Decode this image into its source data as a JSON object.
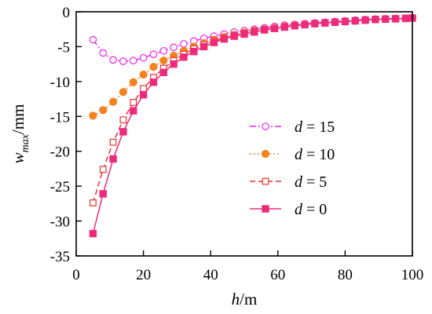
{
  "chart_data": {
    "type": "line",
    "xlabel": {
      "var": "h",
      "unit": "/m"
    },
    "ylabel": {
      "var": "w",
      "sub": "max",
      "unit": "/mm"
    },
    "xlim": [
      0,
      100
    ],
    "ylim": [
      -35,
      0
    ],
    "xticks": [
      0,
      20,
      40,
      60,
      80,
      100
    ],
    "yticks": [
      0,
      -5,
      -10,
      -15,
      -20,
      -25,
      -30,
      -35
    ],
    "grid": false,
    "legend_position": "right",
    "x": [
      5,
      8,
      11,
      14,
      17,
      20,
      23,
      26,
      29,
      32,
      35,
      38,
      41,
      44,
      47,
      50,
      53,
      56,
      59,
      62,
      65,
      68,
      71,
      74,
      77,
      80,
      83,
      86,
      89,
      92,
      95,
      98,
      100
    ],
    "series": [
      {
        "name": "d = 15",
        "label_var": "d",
        "label_value": "= 15",
        "color": "#ee22ee",
        "marker": "circle-open",
        "line": "dashdot",
        "values": [
          -4.0,
          -5.9,
          -6.9,
          -7.1,
          -7.0,
          -6.6,
          -6.1,
          -5.6,
          -5.1,
          -4.6,
          -4.2,
          -3.8,
          -3.5,
          -3.2,
          -2.9,
          -2.7,
          -2.5,
          -2.3,
          -2.1,
          -1.9,
          -1.8,
          -1.7,
          -1.6,
          -1.5,
          -1.4,
          -1.3,
          -1.2,
          -1.1,
          -1.05,
          -1.0,
          -0.95,
          -0.9,
          -0.85
        ]
      },
      {
        "name": "d = 10",
        "label_var": "d",
        "label_value": "= 10",
        "color": "#f58220",
        "marker": "circle-filled",
        "line": "dotted",
        "values": [
          -14.9,
          -14.1,
          -12.9,
          -11.5,
          -10.1,
          -9.0,
          -7.9,
          -7.0,
          -6.3,
          -5.6,
          -5.0,
          -4.5,
          -4.0,
          -3.6,
          -3.3,
          -3.0,
          -2.7,
          -2.5,
          -2.3,
          -2.1,
          -1.9,
          -1.8,
          -1.7,
          -1.6,
          -1.5,
          -1.4,
          -1.3,
          -1.2,
          -1.1,
          -1.05,
          -1.0,
          -0.95,
          -0.9
        ]
      },
      {
        "name": "d = 5",
        "label_var": "d",
        "label_value": "= 5",
        "color": "#e8352f",
        "marker": "square-open",
        "line": "dashed",
        "values": [
          -27.4,
          -22.6,
          -18.7,
          -15.5,
          -13.0,
          -11.0,
          -9.4,
          -8.1,
          -7.0,
          -6.1,
          -5.3,
          -4.7,
          -4.2,
          -3.8,
          -3.4,
          -3.1,
          -2.8,
          -2.6,
          -2.4,
          -2.2,
          -2.0,
          -1.85,
          -1.7,
          -1.6,
          -1.5,
          -1.4,
          -1.3,
          -1.2,
          -1.1,
          -1.05,
          -1.0,
          -0.95,
          -0.9
        ]
      },
      {
        "name": "d = 0",
        "label_var": "d",
        "label_value": "= 0",
        "color": "#ee2a7b",
        "marker": "square-filled",
        "line": "solid",
        "values": [
          -31.8,
          -26.1,
          -21.1,
          -17.2,
          -14.2,
          -11.9,
          -10.1,
          -8.7,
          -7.5,
          -6.5,
          -5.7,
          -5.0,
          -4.4,
          -3.9,
          -3.5,
          -3.2,
          -2.9,
          -2.6,
          -2.4,
          -2.2,
          -2.0,
          -1.85,
          -1.7,
          -1.6,
          -1.5,
          -1.4,
          -1.3,
          -1.2,
          -1.1,
          -1.05,
          -1.0,
          -0.95,
          -0.9
        ]
      }
    ]
  }
}
